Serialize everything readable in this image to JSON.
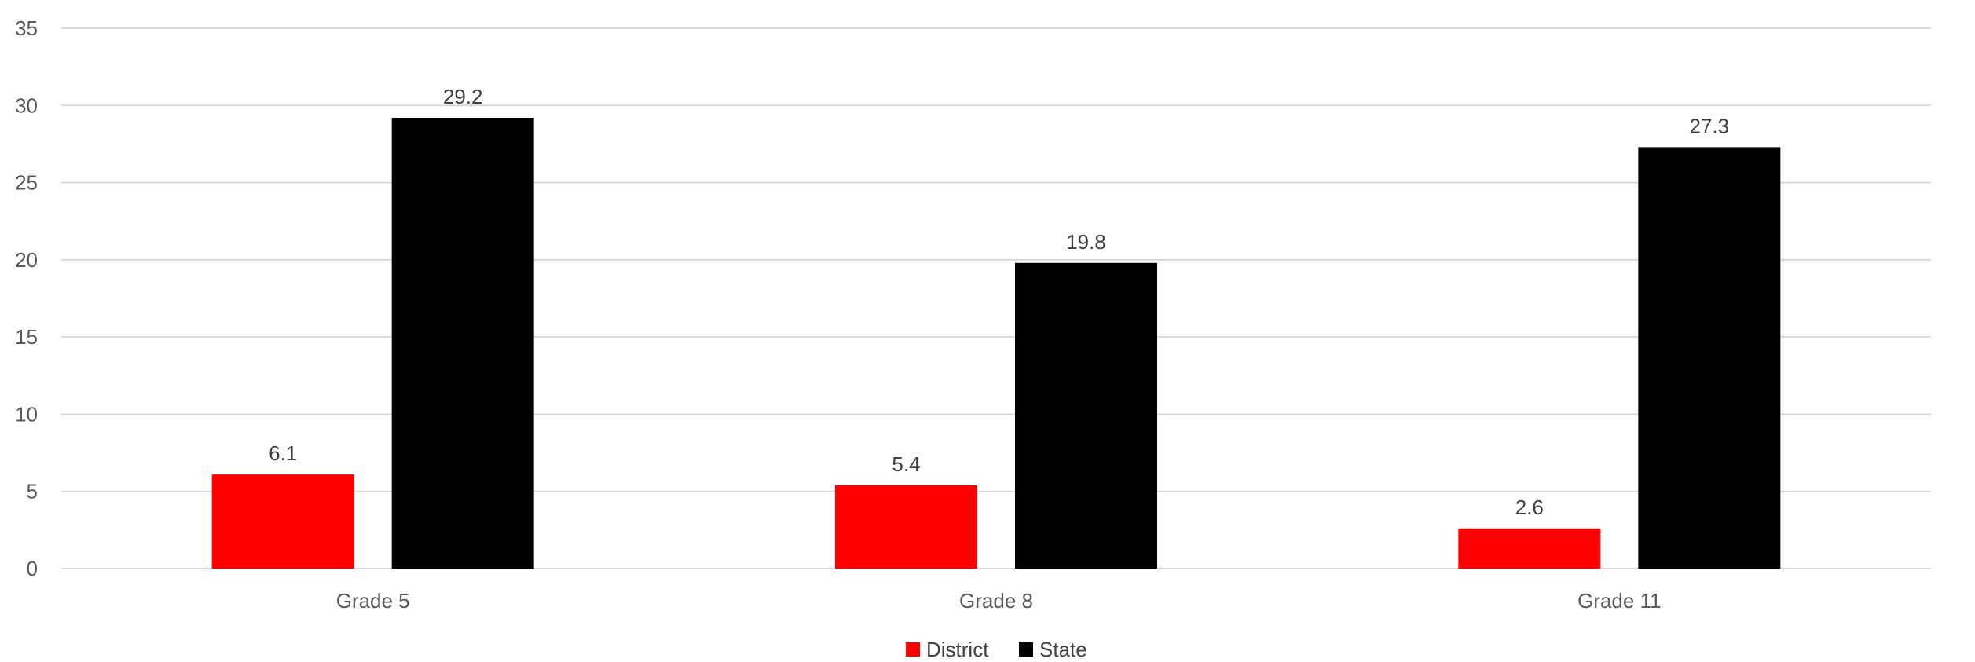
{
  "chart_data": {
    "type": "bar",
    "categories": [
      "Grade 5",
      "Grade 8",
      "Grade 11"
    ],
    "series": [
      {
        "name": "District",
        "color": "#ff0000",
        "values": [
          6.1,
          5.4,
          2.6
        ]
      },
      {
        "name": "State",
        "color": "#000000",
        "values": [
          29.2,
          19.8,
          27.3
        ]
      }
    ],
    "ylim": [
      0,
      35
    ],
    "yticks": [
      0,
      5,
      10,
      15,
      20,
      25,
      30,
      35
    ],
    "data_labels": true,
    "grid": true,
    "legend_position": "bottom"
  }
}
